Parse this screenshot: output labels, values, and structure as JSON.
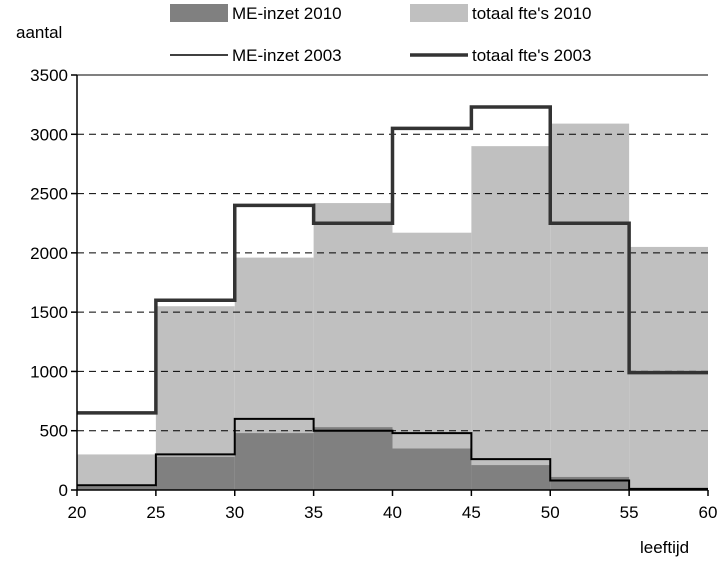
{
  "chart_data": {
    "type": "area",
    "ylabel": "aantal",
    "xlabel": "leeftijd",
    "xlim": [
      20,
      60
    ],
    "ylim": [
      0,
      3500
    ],
    "x_ticks": [
      20,
      25,
      30,
      35,
      40,
      45,
      50,
      55,
      60
    ],
    "y_ticks": [
      0,
      500,
      1000,
      1500,
      2000,
      2500,
      3000,
      3500
    ],
    "grid": "horizontal dashed",
    "legend_position": "top",
    "bins": [
      [
        20,
        25
      ],
      [
        25,
        30
      ],
      [
        30,
        35
      ],
      [
        35,
        40
      ],
      [
        40,
        45
      ],
      [
        45,
        50
      ],
      [
        50,
        55
      ],
      [
        55,
        60
      ]
    ],
    "series": [
      {
        "name": "ME-inzet 2010",
        "style": "filled-bars",
        "color": "#808080",
        "values": [
          30,
          280,
          480,
          530,
          350,
          210,
          110,
          10
        ]
      },
      {
        "name": "totaal fte's 2010",
        "style": "filled-bars",
        "color": "#c0c0c0",
        "values": [
          300,
          1550,
          1960,
          2420,
          2170,
          2900,
          3090,
          2050
        ]
      },
      {
        "name": "ME-inzet 2003",
        "style": "thin-step-line",
        "color": "#000000",
        "values": [
          40,
          300,
          600,
          500,
          480,
          260,
          80,
          10
        ]
      },
      {
        "name": "totaal fte's 2003",
        "style": "thick-step-line",
        "color": "#333333",
        "values": [
          650,
          1600,
          2400,
          2250,
          3050,
          3230,
          2250,
          990
        ]
      }
    ]
  }
}
